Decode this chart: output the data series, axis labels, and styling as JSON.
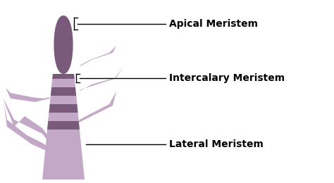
{
  "bg_color": "#ffffff",
  "stem_light": "#c4a8c8",
  "stem_dark": "#7a5a7a",
  "stem_mid": "#9e7ea0",
  "leaf_color": "#c4a8c8",
  "label_apical": "Apical Meristem",
  "label_intercalary": "Intercalary Meristem",
  "label_lateral": "Lateral Meristem",
  "label_fontsize": 10,
  "label_fontweight": "bold",
  "line_color": "#000000",
  "figw": 4.74,
  "figh": 2.6,
  "dpi": 100
}
